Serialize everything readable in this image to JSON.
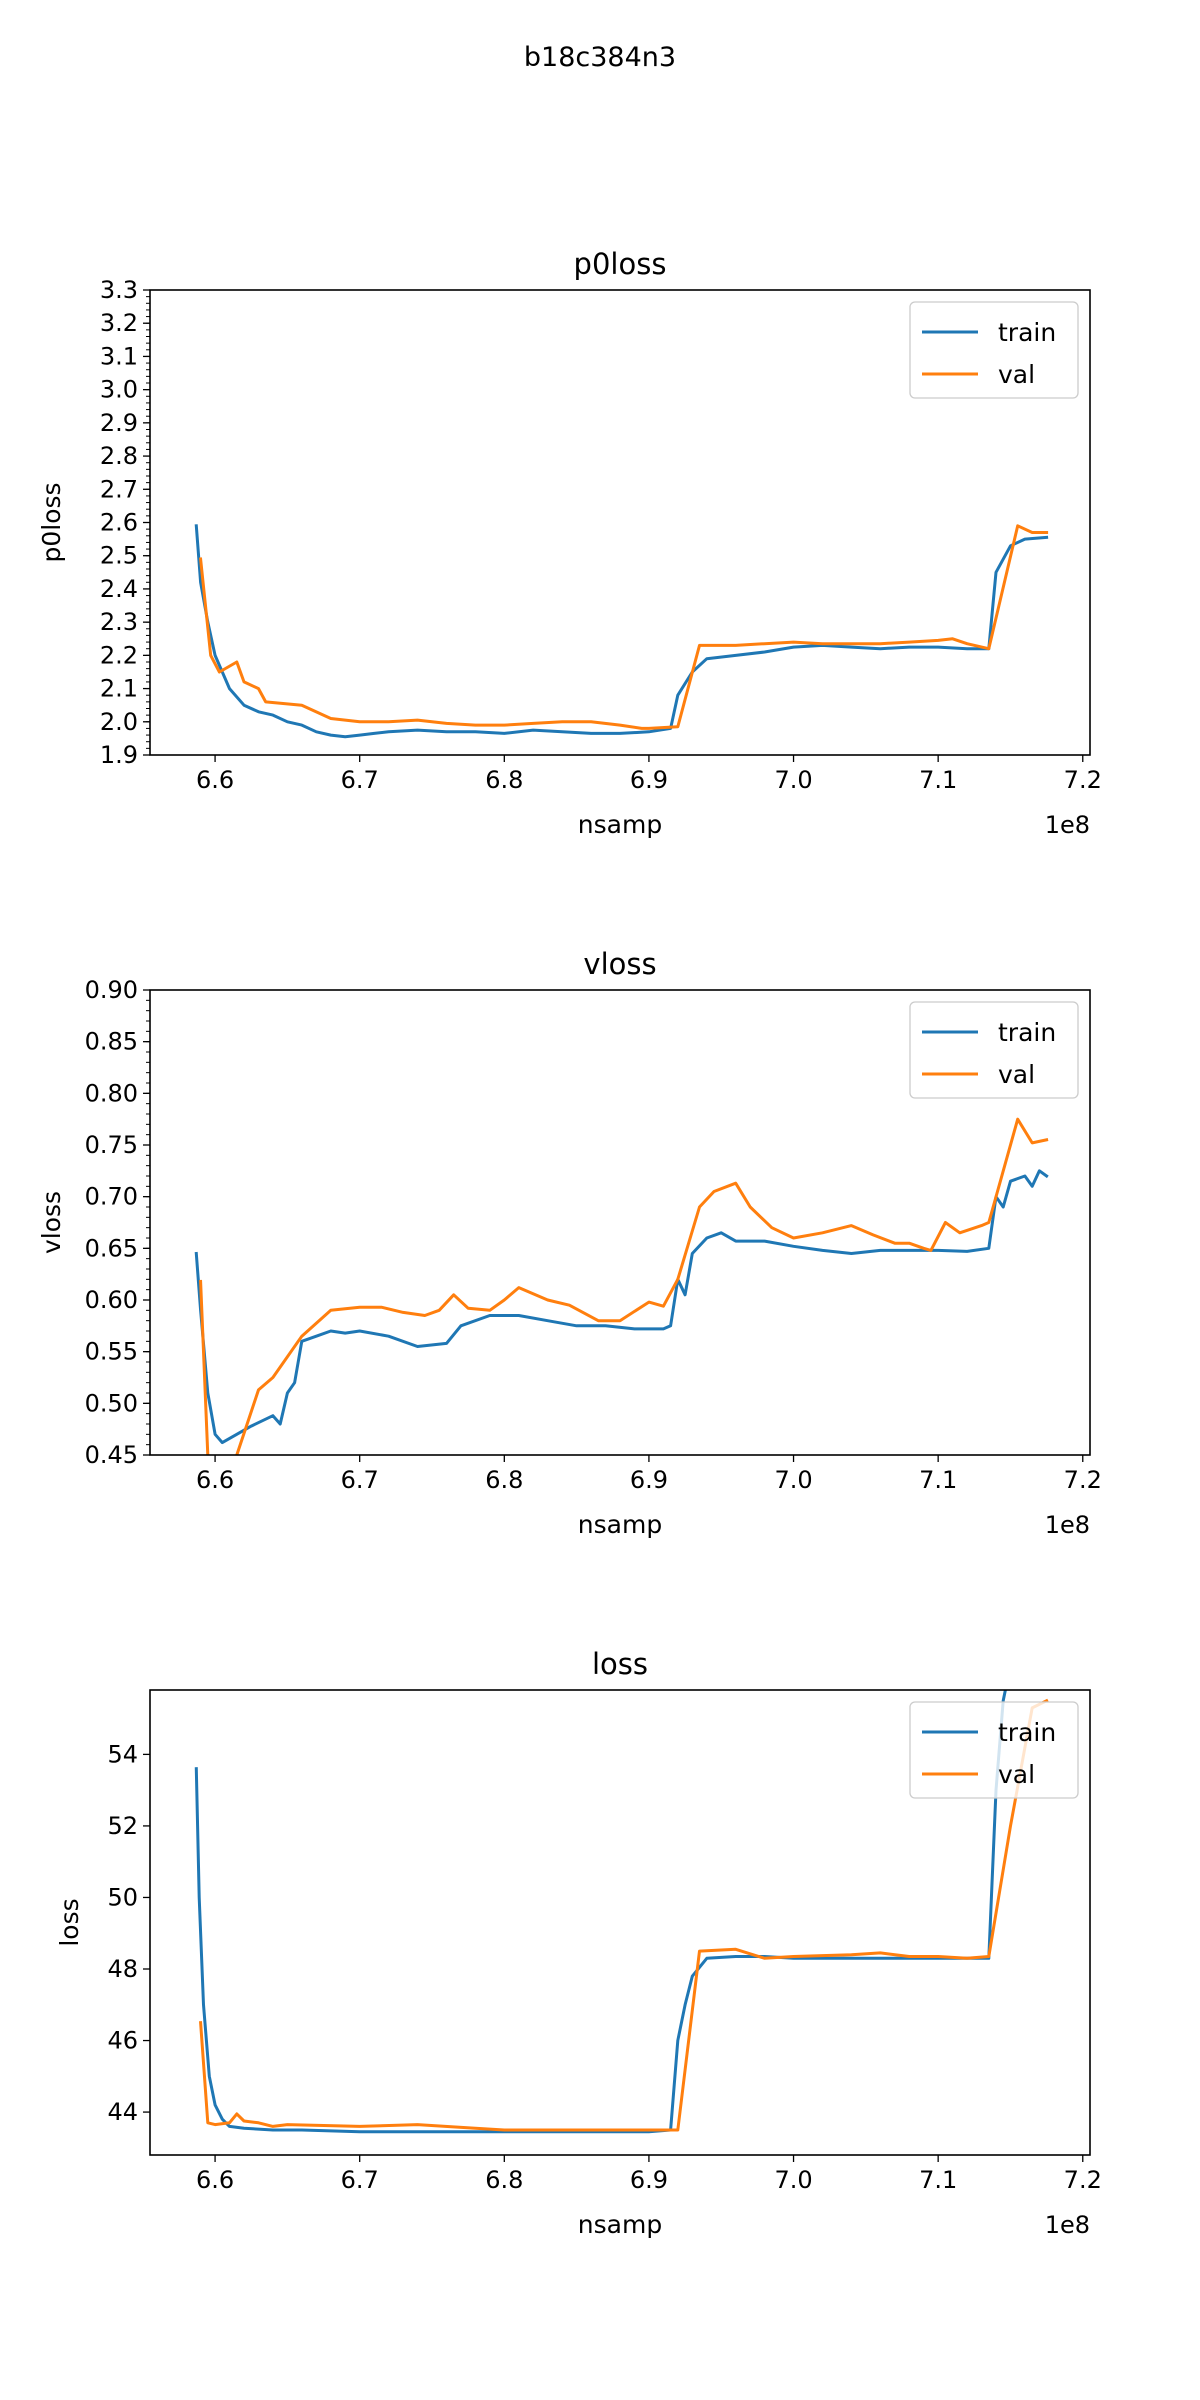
{
  "figure_title": "b18c384n3",
  "colors": {
    "train": "#1f77b4",
    "val": "#ff7f0e",
    "axis": "#000000"
  },
  "chart_data": [
    {
      "type": "line",
      "title": "p0loss",
      "xlabel": "nsamp",
      "ylabel": "p0loss",
      "x_offset_label": "1e8",
      "xlim": [
        6.555,
        7.205
      ],
      "ylim": [
        1.9,
        3.3
      ],
      "xticks": [
        6.6,
        6.7,
        6.8,
        6.9,
        7.0,
        7.1,
        7.2
      ],
      "xtick_labels": [
        "6.6",
        "6.7",
        "6.8",
        "6.9",
        "7.0",
        "7.1",
        "7.2"
      ],
      "yticks": [
        1.9,
        2.0,
        2.1,
        2.2,
        2.3,
        2.4,
        2.5,
        2.6,
        2.7,
        2.8,
        2.9,
        3.0,
        3.1,
        3.2,
        3.3
      ],
      "ytick_labels": [
        "1.9",
        "2.0",
        "2.1",
        "2.2",
        "2.3",
        "2.4",
        "2.5",
        "2.6",
        "2.7",
        "2.8",
        "2.9",
        "3.0",
        "3.1",
        "3.2",
        "3.3"
      ],
      "minor_y_step": 0.02,
      "grid": false,
      "legend": "upper right",
      "series": [
        {
          "name": "train",
          "color": "#1f77b4",
          "x": [
            6.587,
            6.59,
            6.595,
            6.6,
            6.61,
            6.62,
            6.63,
            6.64,
            6.65,
            6.66,
            6.67,
            6.68,
            6.69,
            6.7,
            6.71,
            6.72,
            6.74,
            6.76,
            6.78,
            6.8,
            6.82,
            6.84,
            6.86,
            6.88,
            6.9,
            6.915,
            6.92,
            6.93,
            6.94,
            6.96,
            6.98,
            7.0,
            7.02,
            7.04,
            7.06,
            7.08,
            7.1,
            7.12,
            7.135,
            7.14,
            7.15,
            7.16,
            7.175
          ],
          "y": [
            2.59,
            2.42,
            2.3,
            2.2,
            2.1,
            2.05,
            2.03,
            2.02,
            2.0,
            1.99,
            1.97,
            1.96,
            1.955,
            1.96,
            1.965,
            1.97,
            1.975,
            1.97,
            1.97,
            1.965,
            1.975,
            1.97,
            1.965,
            1.965,
            1.97,
            1.98,
            2.08,
            2.15,
            2.19,
            2.2,
            2.21,
            2.225,
            2.23,
            2.225,
            2.22,
            2.225,
            2.225,
            2.22,
            2.22,
            2.45,
            2.53,
            2.55,
            2.555
          ]
        },
        {
          "name": "val",
          "color": "#ff7f0e",
          "x": [
            6.59,
            6.597,
            6.603,
            6.615,
            6.62,
            6.63,
            6.635,
            6.66,
            6.68,
            6.7,
            6.72,
            6.74,
            6.76,
            6.78,
            6.8,
            6.82,
            6.84,
            6.86,
            6.88,
            6.895,
            6.9,
            6.92,
            6.935,
            6.96,
            6.98,
            7.0,
            7.02,
            7.04,
            7.06,
            7.08,
            7.1,
            7.11,
            7.12,
            7.135,
            7.155,
            7.165,
            7.175
          ],
          "y": [
            2.49,
            2.2,
            2.15,
            2.18,
            2.12,
            2.1,
            2.06,
            2.05,
            2.01,
            2.0,
            2.0,
            2.005,
            1.995,
            1.99,
            1.99,
            1.995,
            2.0,
            2.0,
            1.99,
            1.98,
            1.98,
            1.985,
            2.23,
            2.23,
            2.235,
            2.24,
            2.235,
            2.235,
            2.235,
            2.24,
            2.245,
            2.25,
            2.235,
            2.22,
            2.59,
            2.57,
            2.57
          ]
        }
      ]
    },
    {
      "type": "line",
      "title": "vloss",
      "xlabel": "nsamp",
      "ylabel": "vloss",
      "x_offset_label": "1e8",
      "xlim": [
        6.555,
        7.205
      ],
      "ylim": [
        0.45,
        0.9
      ],
      "xticks": [
        6.6,
        6.7,
        6.8,
        6.9,
        7.0,
        7.1,
        7.2
      ],
      "xtick_labels": [
        "6.6",
        "6.7",
        "6.8",
        "6.9",
        "7.0",
        "7.1",
        "7.2"
      ],
      "yticks": [
        0.45,
        0.5,
        0.55,
        0.6,
        0.65,
        0.7,
        0.75,
        0.8,
        0.85,
        0.9
      ],
      "ytick_labels": [
        "0.45",
        "0.50",
        "0.55",
        "0.60",
        "0.65",
        "0.70",
        "0.75",
        "0.80",
        "0.85",
        "0.90"
      ],
      "minor_y_step": 0.01,
      "grid": false,
      "legend": "upper right",
      "series": [
        {
          "name": "train",
          "color": "#1f77b4",
          "x": [
            6.587,
            6.59,
            6.595,
            6.6,
            6.605,
            6.615,
            6.625,
            6.64,
            6.645,
            6.65,
            6.655,
            6.66,
            6.67,
            6.68,
            6.69,
            6.7,
            6.72,
            6.74,
            6.76,
            6.77,
            6.79,
            6.81,
            6.83,
            6.85,
            6.87,
            6.89,
            6.91,
            6.915,
            6.92,
            6.925,
            6.93,
            6.94,
            6.95,
            6.96,
            6.98,
            7.0,
            7.02,
            7.04,
            7.06,
            7.08,
            7.1,
            7.12,
            7.135,
            7.14,
            7.145,
            7.15,
            7.16,
            7.165,
            7.17,
            7.175
          ],
          "y": [
            0.645,
            0.59,
            0.51,
            0.47,
            0.462,
            0.47,
            0.478,
            0.488,
            0.48,
            0.51,
            0.52,
            0.56,
            0.565,
            0.57,
            0.568,
            0.57,
            0.565,
            0.555,
            0.558,
            0.575,
            0.585,
            0.585,
            0.58,
            0.575,
            0.575,
            0.572,
            0.572,
            0.575,
            0.62,
            0.605,
            0.645,
            0.66,
            0.665,
            0.657,
            0.657,
            0.652,
            0.648,
            0.645,
            0.648,
            0.648,
            0.648,
            0.647,
            0.65,
            0.7,
            0.69,
            0.715,
            0.72,
            0.71,
            0.725,
            0.72
          ]
        },
        {
          "name": "val",
          "color": "#ff7f0e",
          "x": [
            6.59,
            6.595,
            6.597,
            6.61,
            6.615,
            6.63,
            6.64,
            6.66,
            6.68,
            6.7,
            6.715,
            6.73,
            6.745,
            6.755,
            6.765,
            6.775,
            6.79,
            6.8,
            6.81,
            6.83,
            6.845,
            6.865,
            6.88,
            6.9,
            6.91,
            6.92,
            6.935,
            6.945,
            6.96,
            6.97,
            6.985,
            7.0,
            7.02,
            7.04,
            7.055,
            7.07,
            7.08,
            7.09,
            7.095,
            7.105,
            7.115,
            7.13,
            7.135,
            7.155,
            7.165,
            7.175
          ],
          "y": [
            0.618,
            0.45,
            0.445,
            0.44,
            0.45,
            0.513,
            0.525,
            0.565,
            0.59,
            0.593,
            0.593,
            0.588,
            0.585,
            0.59,
            0.605,
            0.592,
            0.59,
            0.6,
            0.612,
            0.6,
            0.595,
            0.58,
            0.58,
            0.598,
            0.594,
            0.62,
            0.69,
            0.705,
            0.713,
            0.69,
            0.67,
            0.66,
            0.665,
            0.672,
            0.663,
            0.655,
            0.655,
            0.65,
            0.648,
            0.675,
            0.665,
            0.672,
            0.675,
            0.775,
            0.752,
            0.755
          ]
        }
      ]
    },
    {
      "type": "line",
      "title": "loss",
      "xlabel": "nsamp",
      "ylabel": "loss",
      "x_offset_label": "1e8",
      "xlim": [
        6.555,
        7.205
      ],
      "ylim": [
        42.8,
        55.8
      ],
      "xticks": [
        6.6,
        6.7,
        6.8,
        6.9,
        7.0,
        7.1,
        7.2
      ],
      "xtick_labels": [
        "6.6",
        "6.7",
        "6.8",
        "6.9",
        "7.0",
        "7.1",
        "7.2"
      ],
      "yticks": [
        44,
        46,
        48,
        50,
        52,
        54
      ],
      "ytick_labels": [
        "44",
        "46",
        "48",
        "50",
        "52",
        "54"
      ],
      "minor_y_step": null,
      "grid": false,
      "legend": "upper right",
      "series": [
        {
          "name": "train",
          "color": "#1f77b4",
          "x": [
            6.587,
            6.589,
            6.592,
            6.596,
            6.6,
            6.605,
            6.61,
            6.62,
            6.64,
            6.66,
            6.7,
            6.75,
            6.8,
            6.85,
            6.9,
            6.915,
            6.92,
            6.925,
            6.93,
            6.94,
            6.96,
            6.98,
            7.0,
            7.04,
            7.08,
            7.12,
            7.135,
            7.14,
            7.145,
            7.15
          ],
          "y": [
            53.6,
            50.0,
            47.0,
            45.0,
            44.2,
            43.8,
            43.6,
            43.55,
            43.5,
            43.5,
            43.45,
            43.45,
            43.45,
            43.45,
            43.45,
            43.5,
            46.0,
            47.0,
            47.8,
            48.3,
            48.35,
            48.35,
            48.3,
            48.3,
            48.3,
            48.3,
            48.3,
            53.0,
            55.5,
            56.5
          ]
        },
        {
          "name": "val",
          "color": "#ff7f0e",
          "x": [
            6.59,
            6.595,
            6.6,
            6.61,
            6.615,
            6.62,
            6.63,
            6.64,
            6.65,
            6.7,
            6.74,
            6.78,
            6.8,
            6.85,
            6.9,
            6.92,
            6.935,
            6.96,
            6.98,
            7.0,
            7.04,
            7.06,
            7.08,
            7.1,
            7.12,
            7.135,
            7.15,
            7.165,
            7.175
          ],
          "y": [
            46.5,
            43.7,
            43.65,
            43.7,
            43.95,
            43.75,
            43.7,
            43.6,
            43.65,
            43.6,
            43.65,
            43.55,
            43.5,
            43.5,
            43.5,
            43.5,
            48.5,
            48.55,
            48.3,
            48.35,
            48.4,
            48.45,
            48.35,
            48.35,
            48.3,
            48.35,
            52.0,
            55.3,
            55.5
          ]
        }
      ]
    }
  ]
}
